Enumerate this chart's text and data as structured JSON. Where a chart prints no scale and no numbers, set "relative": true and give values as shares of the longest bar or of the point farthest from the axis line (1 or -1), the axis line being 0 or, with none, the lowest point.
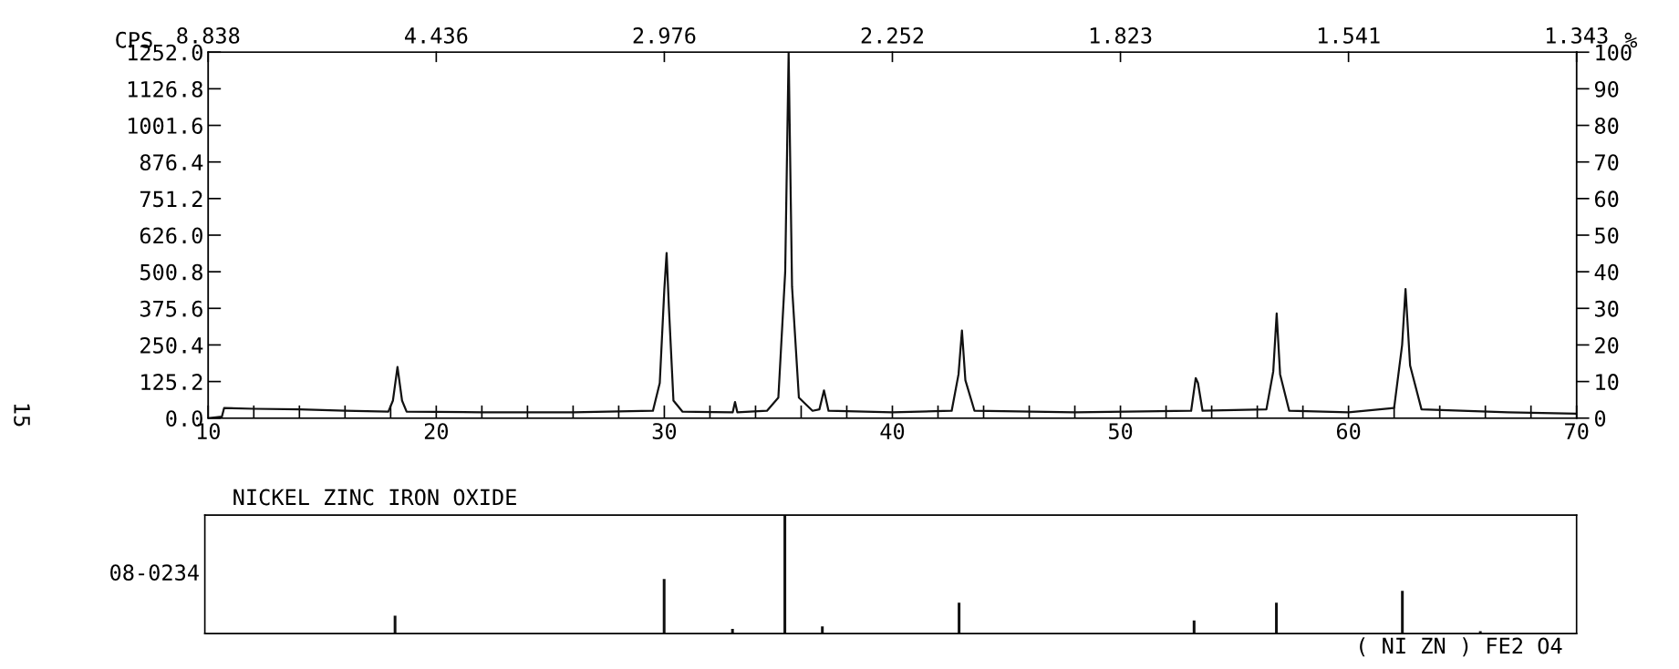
{
  "chart_data": [
    {
      "type": "line",
      "ylabel": "CPS",
      "y2label": "%",
      "annotations": [
        "8.838",
        "4.436",
        "2.976",
        "2.252",
        "1.823",
        "1.541",
        "1.343"
      ],
      "color": "#111111",
      "x": [
        10,
        10.6,
        10.7,
        12,
        14,
        16,
        17.9,
        18.1,
        18.3,
        18.5,
        18.7,
        22,
        26,
        29.5,
        29.8,
        30.0,
        30.1,
        30.2,
        30.4,
        30.8,
        33.0,
        33.1,
        33.2,
        34.5,
        35.0,
        35.3,
        35.45,
        35.6,
        35.9,
        36.5,
        36.8,
        37.0,
        37.2,
        40,
        42.6,
        42.9,
        43.05,
        43.2,
        43.6,
        48,
        53.1,
        53.3,
        53.4,
        53.6,
        56.4,
        56.7,
        56.85,
        57.0,
        57.4,
        60,
        62.0,
        62.35,
        62.5,
        62.7,
        63.2,
        67,
        70
      ],
      "values": [
        0,
        5,
        35,
        32,
        30,
        25,
        22,
        60,
        175,
        60,
        22,
        20,
        20,
        25,
        120,
        440,
        565,
        380,
        60,
        22,
        20,
        55,
        20,
        25,
        70,
        500,
        1252,
        450,
        70,
        25,
        30,
        95,
        25,
        20,
        25,
        150,
        300,
        130,
        25,
        20,
        25,
        137,
        120,
        25,
        30,
        160,
        358,
        150,
        25,
        20,
        35,
        250,
        442,
        180,
        30,
        20,
        15
      ],
      "xlim": [
        10,
        70
      ],
      "xticks": [
        10,
        {
          "value": 12,
          "label": null
        },
        {
          "value": 14,
          "label": null
        },
        {
          "value": 16,
          "label": null
        },
        {
          "value": 18,
          "label": null
        },
        20,
        {
          "value": 22,
          "label": null
        },
        {
          "value": 24,
          "label": null
        },
        {
          "value": 26,
          "label": null
        },
        {
          "value": 28,
          "label": null
        },
        30,
        {
          "value": 32,
          "label": null
        },
        {
          "value": 34,
          "label": null
        },
        {
          "value": 36,
          "label": null
        },
        {
          "value": 38,
          "label": null
        },
        40,
        {
          "value": 42,
          "label": null
        },
        {
          "value": 44,
          "label": null
        },
        {
          "value": 46,
          "label": null
        },
        {
          "value": 48,
          "label": null
        },
        50,
        {
          "value": 52,
          "label": null
        },
        {
          "value": 54,
          "label": null
        },
        {
          "value": 56,
          "label": null
        },
        {
          "value": 58,
          "label": null
        },
        60,
        {
          "value": 62,
          "label": null
        },
        {
          "value": 64,
          "label": null
        },
        {
          "value": 66,
          "label": null
        },
        {
          "value": 68,
          "label": null
        },
        70
      ],
      "ylim": [
        0,
        1252
      ],
      "yticks": [
        {
          "value": 0,
          "label": "0.0"
        },
        {
          "value": 125.2,
          "label": "125.2"
        },
        {
          "value": 250.4,
          "label": "250.4"
        },
        {
          "value": 375.6,
          "label": "375.6"
        },
        {
          "value": 500.8,
          "label": "500.8"
        },
        {
          "value": 626,
          "label": "626.0"
        },
        {
          "value": 751.2,
          "label": "751.2"
        },
        {
          "value": 876.4,
          "label": "876.4"
        },
        {
          "value": 1001.6,
          "label": "1001.6"
        },
        {
          "value": 1126.8,
          "label": "1126.8"
        },
        {
          "value": 1252,
          "label": "1252.0"
        }
      ],
      "y2lim": [
        0,
        100
      ],
      "y2ticks": [
        0,
        10,
        20,
        30,
        40,
        50,
        60,
        70,
        80,
        90,
        100
      ],
      "grid": false,
      "legend": false,
      "marker": "none",
      "line_style": "solid"
    },
    {
      "type": "bar",
      "title": "NICKEL ZINC IRON OXIDE",
      "ylabel": "08-0234",
      "annotations": [
        "( NI ZN ) FE2 O4",
        "15"
      ],
      "relative": true,
      "color": "#111111",
      "x": [
        18.32,
        30.09,
        33.08,
        35.37,
        37.01,
        42.99,
        53.27,
        56.87,
        62.38,
        65.79
      ],
      "values": [
        0.15,
        0.46,
        0.04,
        1,
        0.06,
        0.26,
        0.11,
        0.26,
        0.36,
        0.02
      ],
      "xlim": [
        10,
        70
      ],
      "legend": false
    }
  ]
}
